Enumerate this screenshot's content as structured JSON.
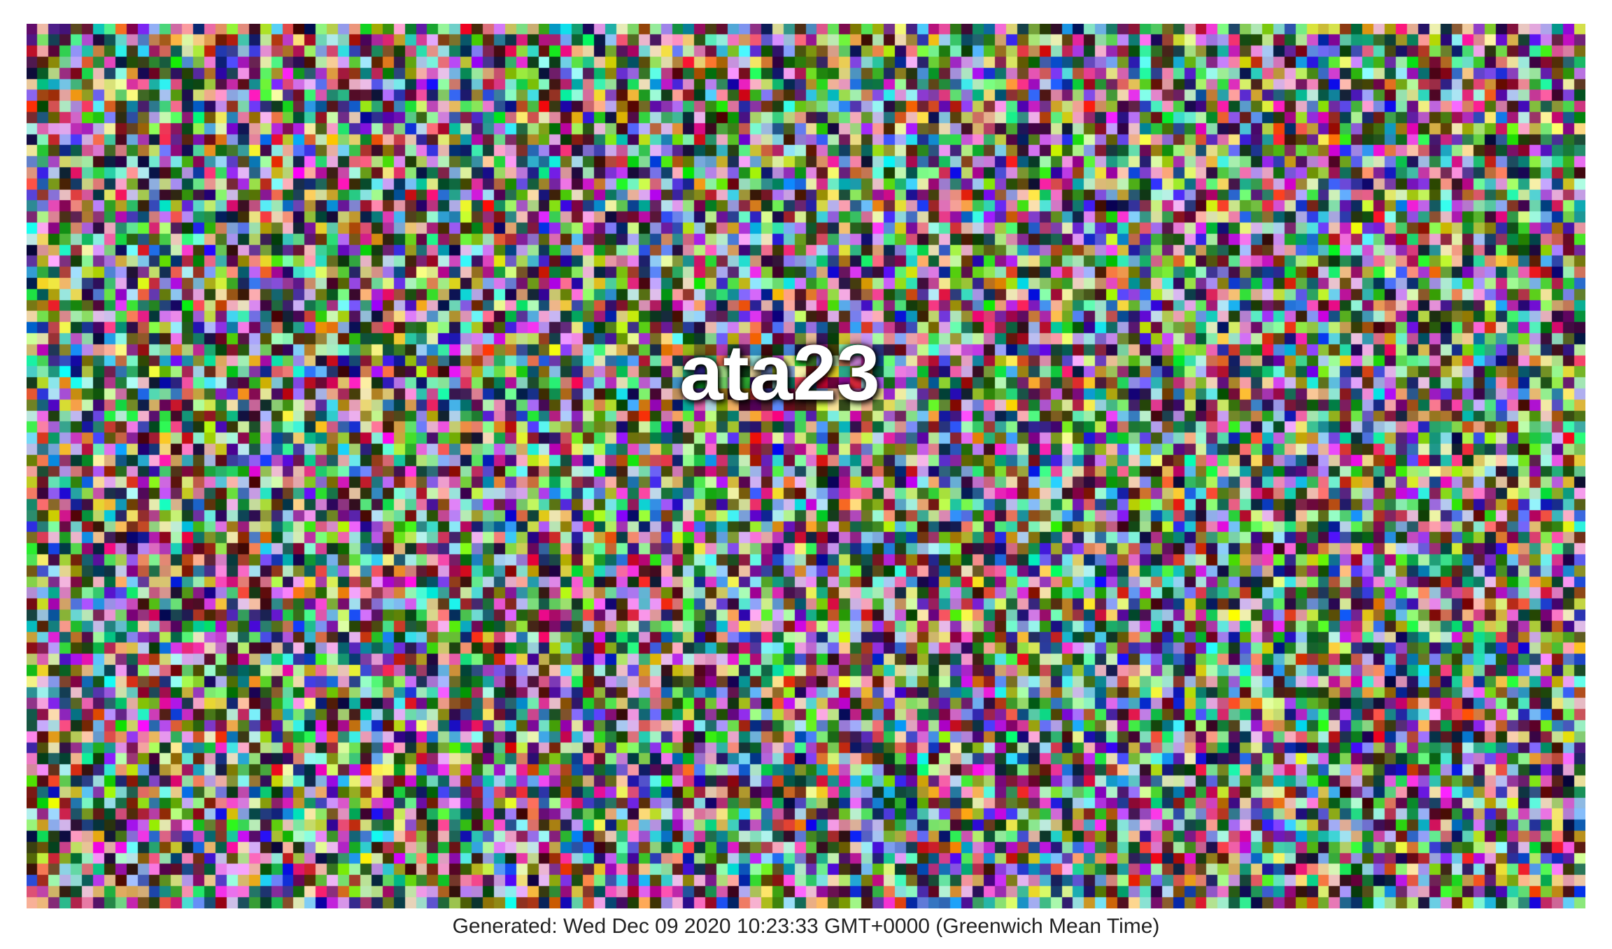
{
  "image": {
    "title": "ata23",
    "pattern": "random-colored-pixel-noise",
    "grid_columns": 140,
    "grid_rows": 80,
    "title_color": "#ffffff",
    "title_shadow_color": "#000000"
  },
  "footer": {
    "generated_text": "Generated: Wed Dec 09 2020 10:23:33 GMT+0000 (Greenwich Mean Time)"
  }
}
